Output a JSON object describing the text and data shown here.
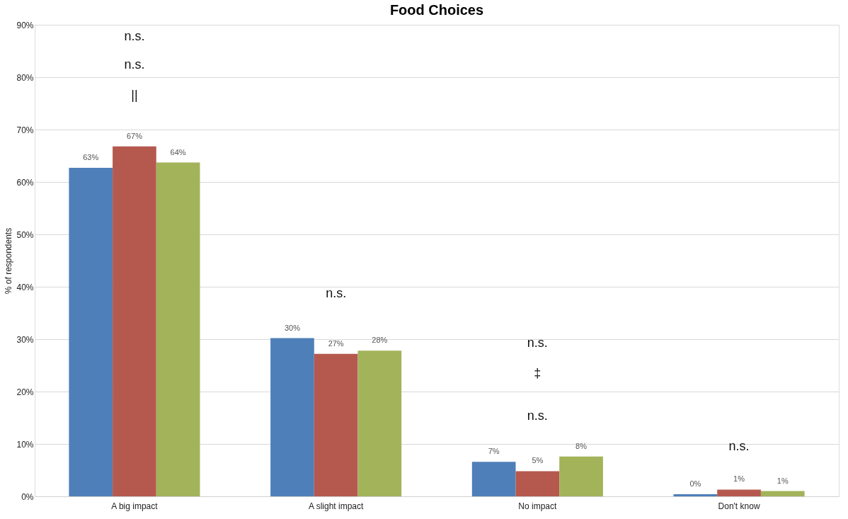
{
  "chart_data": {
    "type": "bar",
    "title": "Food Choices",
    "ylabel": "% of respondents",
    "categories": [
      "A big impact",
      "A slight impact",
      "No impact",
      "Don't know"
    ],
    "series": [
      {
        "color": "#4f7fb8",
        "values": [
          62.7,
          30.2,
          6.6,
          0.4
        ],
        "value_labels": [
          "63%",
          "30%",
          "7%",
          "0%"
        ]
      },
      {
        "color": "#b5594f",
        "values": [
          66.8,
          27.2,
          4.8,
          1.3
        ],
        "value_labels": [
          "67%",
          "27%",
          "5%",
          "1%"
        ]
      },
      {
        "color": "#a3b35a",
        "values": [
          63.7,
          27.8,
          7.6,
          1.0
        ],
        "value_labels": [
          "64%",
          "28%",
          "8%",
          "1%"
        ]
      }
    ],
    "ylim": [
      0,
      90
    ],
    "yticks": [
      {
        "value": 0,
        "label": "0%"
      },
      {
        "value": 10,
        "label": "10%"
      },
      {
        "value": 20,
        "label": "20%"
      },
      {
        "value": 30,
        "label": "30%"
      },
      {
        "value": 40,
        "label": "40%"
      },
      {
        "value": 50,
        "label": "50%"
      },
      {
        "value": 60,
        "label": "60%"
      },
      {
        "value": 70,
        "label": "70%"
      },
      {
        "value": 80,
        "label": "80%"
      },
      {
        "value": 90,
        "label": "90%"
      }
    ],
    "grid": "y",
    "legend": false,
    "annotations": [
      "n.s.",
      "n.s.",
      "||",
      "n.s.",
      "n.s.",
      "‡",
      "n.s.",
      "n.s."
    ]
  }
}
